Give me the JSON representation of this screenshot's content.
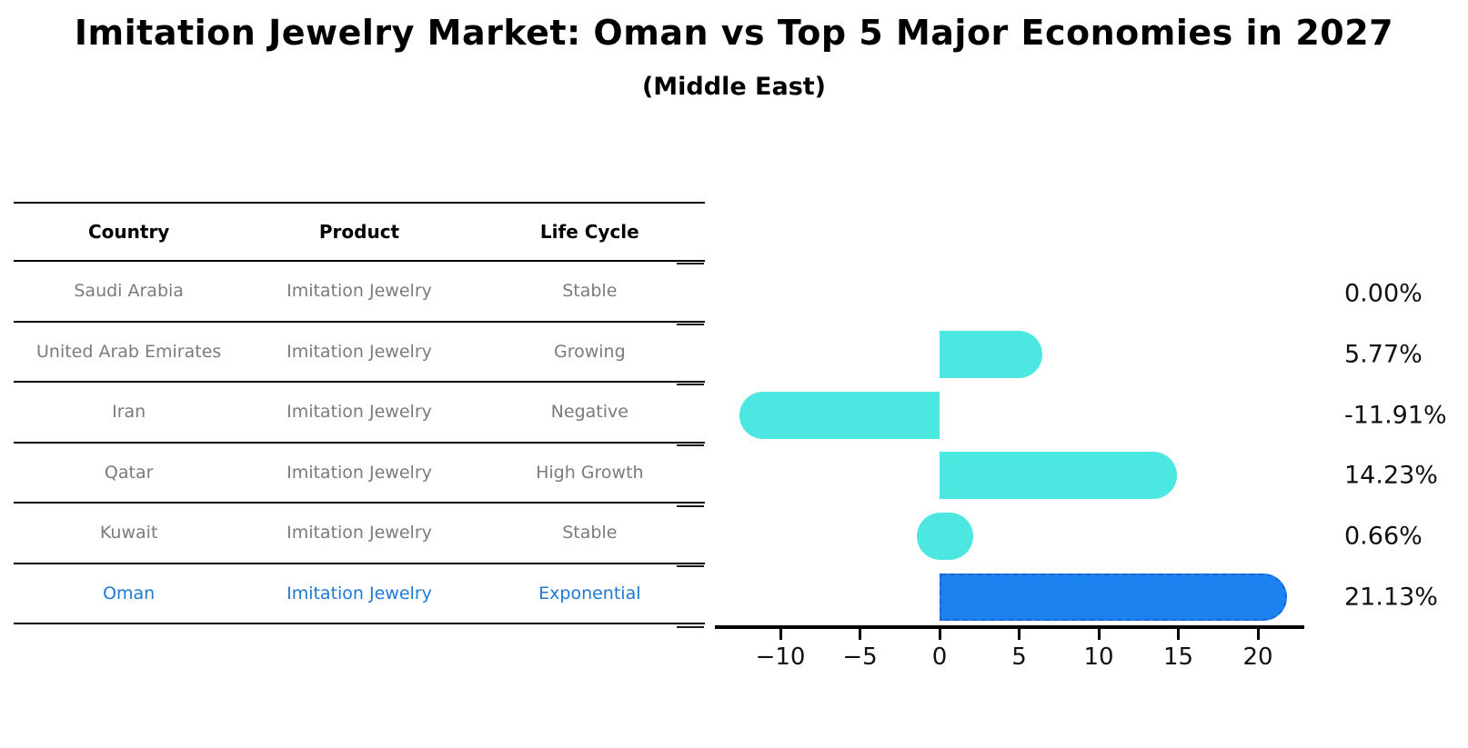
{
  "title": "Imitation Jewelry Market: Oman vs Top 5 Major Economies in 2027",
  "subtitle": "(Middle East)",
  "table": {
    "columns": [
      "Country",
      "Product",
      "Life Cycle"
    ],
    "rows": [
      {
        "country": "Saudi Arabia",
        "product": "Imitation Jewelry",
        "life_cycle": "Stable",
        "highlight": false
      },
      {
        "country": "United Arab Emirates",
        "product": "Imitation Jewelry",
        "life_cycle": "Growing",
        "highlight": false
      },
      {
        "country": "Iran",
        "product": "Imitation Jewelry",
        "life_cycle": "Negative",
        "highlight": false
      },
      {
        "country": "Qatar",
        "product": "Imitation Jewelry",
        "life_cycle": "High Growth",
        "highlight": false
      },
      {
        "country": "Kuwait",
        "product": "Imitation Jewelry",
        "life_cycle": "Stable",
        "highlight": false
      },
      {
        "country": "Oman",
        "product": "Imitation Jewelry",
        "life_cycle": "Exponential",
        "highlight": true
      }
    ]
  },
  "chart_data": {
    "type": "bar",
    "orientation": "horizontal",
    "title": "Imitation Jewelry Market: Oman vs Top 5 Major Economies in 2027 (Middle East)",
    "categories": [
      "Saudi Arabia",
      "United Arab Emirates",
      "Iran",
      "Qatar",
      "Kuwait",
      "Oman"
    ],
    "values": [
      0.0,
      5.77,
      -11.91,
      14.23,
      0.66,
      21.13
    ],
    "value_labels": [
      "0.00%",
      "5.77%",
      "-11.91%",
      "14.23%",
      "0.66%",
      "21.13%"
    ],
    "x_ticks": [
      -10,
      -5,
      0,
      5,
      10,
      15,
      20
    ],
    "xlim": [
      -13.9,
      22.8
    ],
    "grid": false,
    "legend": false,
    "bar_color": "#4DE7E2",
    "highlight_color": "#1C82F0",
    "highlight_border_color": "#1a67d2",
    "highlight_index": 5,
    "highlight_text_color": "#1E79D6"
  }
}
